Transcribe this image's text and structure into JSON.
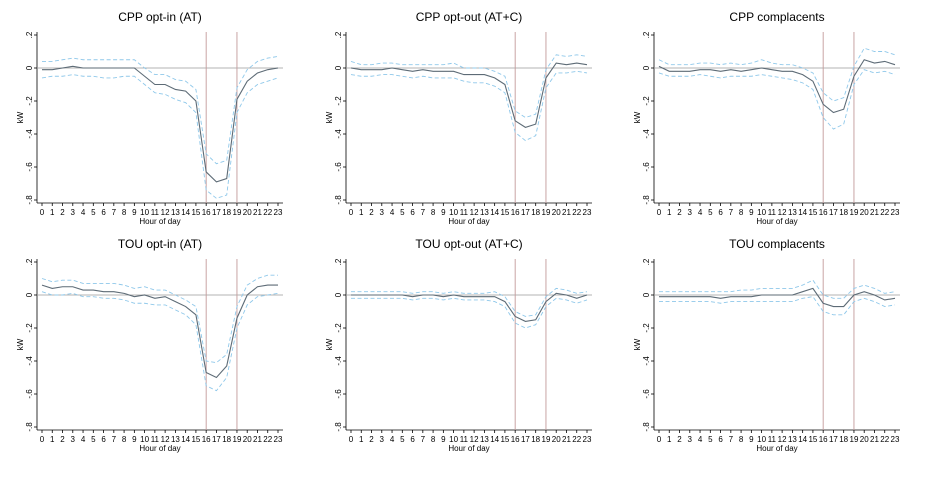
{
  "figure": {
    "x_tick_labels": [
      "0",
      "1",
      "2",
      "3",
      "4",
      "5",
      "6",
      "7",
      "8",
      "9",
      "10",
      "11",
      "12",
      "13",
      "14",
      "15",
      "16",
      "17",
      "18",
      "19",
      "20",
      "21",
      "22",
      "23"
    ],
    "y_tick_labels": [
      ".2",
      "0",
      "-.2",
      "-.4",
      "-.6",
      "-.8"
    ],
    "colors": {
      "estimate": "#5d6b76",
      "ci": "#8fc8ea",
      "zero_line": "#9a9a9a",
      "event_window": "#c39a9a",
      "axis": "#000000"
    }
  },
  "chart_data": [
    {
      "type": "line",
      "title": "CPP opt-in (AT)",
      "xlabel": "Hour of day",
      "ylabel": "kW",
      "x": [
        0,
        1,
        2,
        3,
        4,
        5,
        6,
        7,
        8,
        9,
        10,
        11,
        12,
        13,
        14,
        15,
        16,
        17,
        18,
        19,
        20,
        21,
        22,
        23
      ],
      "ylim": [
        -0.8,
        0.2
      ],
      "reference_lines": {
        "y": 0,
        "x": [
          16,
          19
        ]
      },
      "series": [
        {
          "role": "estimate",
          "values": [
            -0.01,
            -0.01,
            0.0,
            0.01,
            0.0,
            0.0,
            0.0,
            0.0,
            0.0,
            0.0,
            -0.05,
            -0.1,
            -0.1,
            -0.13,
            -0.14,
            -0.2,
            -0.63,
            -0.69,
            -0.67,
            -0.19,
            -0.08,
            -0.03,
            -0.01,
            0.0
          ]
        },
        {
          "role": "ci_upper",
          "values": [
            0.04,
            0.04,
            0.05,
            0.06,
            0.05,
            0.05,
            0.05,
            0.05,
            0.05,
            0.05,
            0.0,
            -0.04,
            -0.04,
            -0.07,
            -0.08,
            -0.13,
            -0.52,
            -0.58,
            -0.56,
            -0.12,
            -0.01,
            0.04,
            0.06,
            0.07
          ]
        },
        {
          "role": "ci_lower",
          "values": [
            -0.06,
            -0.05,
            -0.05,
            -0.04,
            -0.05,
            -0.05,
            -0.06,
            -0.06,
            -0.05,
            -0.05,
            -0.1,
            -0.15,
            -0.16,
            -0.19,
            -0.21,
            -0.27,
            -0.74,
            -0.79,
            -0.77,
            -0.27,
            -0.15,
            -0.1,
            -0.08,
            -0.06
          ]
        }
      ]
    },
    {
      "type": "line",
      "title": "CPP opt-out (AT+C)",
      "xlabel": "Hour of day",
      "ylabel": "kW",
      "x": [
        0,
        1,
        2,
        3,
        4,
        5,
        6,
        7,
        8,
        9,
        10,
        11,
        12,
        13,
        14,
        15,
        16,
        17,
        18,
        19,
        20,
        21,
        22,
        23
      ],
      "ylim": [
        -0.8,
        0.2
      ],
      "reference_lines": {
        "y": 0,
        "x": [
          16,
          19
        ]
      },
      "series": [
        {
          "role": "estimate",
          "values": [
            0.0,
            -0.01,
            -0.01,
            -0.01,
            0.0,
            -0.01,
            -0.02,
            -0.01,
            -0.02,
            -0.02,
            -0.02,
            -0.04,
            -0.04,
            -0.04,
            -0.06,
            -0.1,
            -0.32,
            -0.36,
            -0.34,
            -0.06,
            0.03,
            0.02,
            0.03,
            0.02
          ]
        },
        {
          "role": "ci_upper",
          "values": [
            0.04,
            0.02,
            0.02,
            0.03,
            0.03,
            0.02,
            0.02,
            0.02,
            0.02,
            0.02,
            0.03,
            0.0,
            0.0,
            0.0,
            -0.02,
            -0.05,
            -0.26,
            -0.3,
            -0.28,
            -0.01,
            0.08,
            0.07,
            0.08,
            0.07
          ]
        },
        {
          "role": "ci_lower",
          "values": [
            -0.04,
            -0.05,
            -0.05,
            -0.04,
            -0.04,
            -0.05,
            -0.06,
            -0.05,
            -0.06,
            -0.06,
            -0.06,
            -0.08,
            -0.09,
            -0.09,
            -0.11,
            -0.15,
            -0.39,
            -0.44,
            -0.41,
            -0.12,
            -0.03,
            -0.03,
            -0.02,
            -0.03
          ]
        }
      ]
    },
    {
      "type": "line",
      "title": "CPP complacents",
      "xlabel": "Hour of day",
      "ylabel": "kW",
      "x": [
        0,
        1,
        2,
        3,
        4,
        5,
        6,
        7,
        8,
        9,
        10,
        11,
        12,
        13,
        14,
        15,
        16,
        17,
        18,
        19,
        20,
        21,
        22,
        23
      ],
      "ylim": [
        -0.8,
        0.2
      ],
      "reference_lines": {
        "y": 0,
        "x": [
          16,
          19
        ]
      },
      "series": [
        {
          "role": "estimate",
          "values": [
            0.01,
            -0.02,
            -0.02,
            -0.02,
            -0.01,
            -0.01,
            -0.02,
            -0.01,
            -0.02,
            -0.01,
            0.0,
            -0.01,
            -0.02,
            -0.02,
            -0.04,
            -0.08,
            -0.22,
            -0.27,
            -0.25,
            -0.05,
            0.05,
            0.03,
            0.04,
            0.02
          ]
        },
        {
          "role": "ci_upper",
          "values": [
            0.05,
            0.02,
            0.02,
            0.02,
            0.03,
            0.03,
            0.02,
            0.03,
            0.02,
            0.03,
            0.05,
            0.03,
            0.02,
            0.02,
            0.0,
            -0.03,
            -0.15,
            -0.2,
            -0.18,
            0.01,
            0.12,
            0.1,
            0.1,
            0.08
          ]
        },
        {
          "role": "ci_lower",
          "values": [
            -0.03,
            -0.05,
            -0.05,
            -0.05,
            -0.04,
            -0.05,
            -0.06,
            -0.05,
            -0.05,
            -0.05,
            -0.04,
            -0.05,
            -0.06,
            -0.07,
            -0.09,
            -0.13,
            -0.3,
            -0.37,
            -0.34,
            -0.1,
            -0.01,
            -0.03,
            -0.02,
            -0.04
          ]
        }
      ]
    },
    {
      "type": "line",
      "title": "TOU opt-in (AT)",
      "xlabel": "Hour of day",
      "ylabel": "kW",
      "x": [
        0,
        1,
        2,
        3,
        4,
        5,
        6,
        7,
        8,
        9,
        10,
        11,
        12,
        13,
        14,
        15,
        16,
        17,
        18,
        19,
        20,
        21,
        22,
        23
      ],
      "ylim": [
        -0.8,
        0.2
      ],
      "reference_lines": {
        "y": 0,
        "x": [
          16,
          19
        ]
      },
      "series": [
        {
          "role": "estimate",
          "values": [
            0.06,
            0.04,
            0.05,
            0.05,
            0.03,
            0.03,
            0.02,
            0.02,
            0.01,
            -0.01,
            0.0,
            -0.02,
            -0.01,
            -0.04,
            -0.07,
            -0.12,
            -0.47,
            -0.5,
            -0.43,
            -0.14,
            0.0,
            0.05,
            0.06,
            0.06
          ]
        },
        {
          "role": "ci_upper",
          "values": [
            0.1,
            0.08,
            0.09,
            0.09,
            0.07,
            0.07,
            0.07,
            0.07,
            0.06,
            0.04,
            0.05,
            0.03,
            0.03,
            0.0,
            -0.03,
            -0.07,
            -0.4,
            -0.41,
            -0.36,
            -0.07,
            0.06,
            0.1,
            0.12,
            0.12
          ]
        },
        {
          "role": "ci_lower",
          "values": [
            0.02,
            0.0,
            0.0,
            0.01,
            -0.01,
            -0.01,
            -0.02,
            -0.02,
            -0.03,
            -0.05,
            -0.05,
            -0.06,
            -0.06,
            -0.09,
            -0.12,
            -0.18,
            -0.55,
            -0.58,
            -0.5,
            -0.2,
            -0.06,
            -0.01,
            0.0,
            0.01
          ]
        }
      ]
    },
    {
      "type": "line",
      "title": "TOU opt-out (AT+C)",
      "xlabel": "Hour of day",
      "ylabel": "kW",
      "x": [
        0,
        1,
        2,
        3,
        4,
        5,
        6,
        7,
        8,
        9,
        10,
        11,
        12,
        13,
        14,
        15,
        16,
        17,
        18,
        19,
        20,
        21,
        22,
        23
      ],
      "ylim": [
        -0.8,
        0.2
      ],
      "reference_lines": {
        "y": 0,
        "x": [
          16,
          19
        ]
      },
      "series": [
        {
          "role": "estimate",
          "values": [
            0.0,
            0.0,
            0.0,
            0.0,
            0.0,
            0.0,
            -0.01,
            0.0,
            0.0,
            -0.01,
            0.0,
            -0.01,
            -0.01,
            -0.01,
            -0.01,
            -0.04,
            -0.13,
            -0.16,
            -0.15,
            -0.04,
            0.01,
            0.0,
            -0.02,
            0.0
          ]
        },
        {
          "role": "ci_upper",
          "values": [
            0.02,
            0.02,
            0.02,
            0.02,
            0.02,
            0.02,
            0.01,
            0.02,
            0.02,
            0.01,
            0.02,
            0.01,
            0.01,
            0.01,
            0.02,
            -0.01,
            -0.1,
            -0.13,
            -0.12,
            -0.01,
            0.04,
            0.03,
            0.01,
            0.02
          ]
        },
        {
          "role": "ci_lower",
          "values": [
            -0.02,
            -0.02,
            -0.02,
            -0.02,
            -0.02,
            -0.02,
            -0.03,
            -0.02,
            -0.02,
            -0.03,
            -0.02,
            -0.03,
            -0.03,
            -0.03,
            -0.04,
            -0.07,
            -0.17,
            -0.2,
            -0.18,
            -0.07,
            -0.02,
            -0.03,
            -0.05,
            -0.03
          ]
        }
      ]
    },
    {
      "type": "line",
      "title": "TOU complacents",
      "xlabel": "Hour of day",
      "ylabel": "kW",
      "x": [
        0,
        1,
        2,
        3,
        4,
        5,
        6,
        7,
        8,
        9,
        10,
        11,
        12,
        13,
        14,
        15,
        16,
        17,
        18,
        19,
        20,
        21,
        22,
        23
      ],
      "ylim": [
        -0.8,
        0.2
      ],
      "reference_lines": {
        "y": 0,
        "x": [
          16,
          19
        ]
      },
      "series": [
        {
          "role": "estimate",
          "values": [
            -0.01,
            -0.01,
            -0.01,
            -0.01,
            -0.01,
            -0.01,
            -0.02,
            -0.01,
            -0.01,
            -0.01,
            0.0,
            0.0,
            0.0,
            0.0,
            0.02,
            0.04,
            -0.05,
            -0.07,
            -0.07,
            0.0,
            0.02,
            0.0,
            -0.03,
            -0.02
          ]
        },
        {
          "role": "ci_upper",
          "values": [
            0.02,
            0.02,
            0.02,
            0.02,
            0.02,
            0.02,
            0.02,
            0.02,
            0.03,
            0.03,
            0.04,
            0.04,
            0.04,
            0.04,
            0.06,
            0.09,
            0.0,
            -0.02,
            -0.02,
            0.04,
            0.06,
            0.04,
            0.01,
            0.02
          ]
        },
        {
          "role": "ci_lower",
          "values": [
            -0.04,
            -0.04,
            -0.04,
            -0.04,
            -0.04,
            -0.04,
            -0.05,
            -0.04,
            -0.04,
            -0.04,
            -0.04,
            -0.04,
            -0.04,
            -0.04,
            -0.02,
            -0.01,
            -0.1,
            -0.12,
            -0.12,
            -0.04,
            -0.02,
            -0.04,
            -0.07,
            -0.06
          ]
        }
      ]
    }
  ]
}
